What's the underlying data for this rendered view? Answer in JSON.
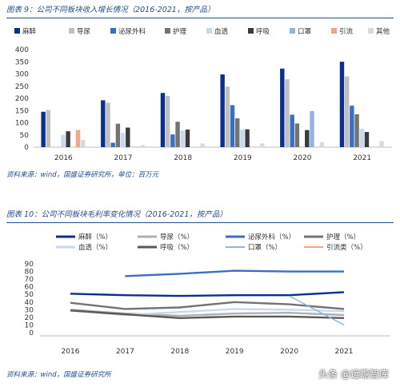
{
  "figure1": {
    "title": "图表 9：公司不同板块收入增长情况（2016-2021，按产品）",
    "source": "资料来源：wind，国盛证券研究所，单位：百万元"
  },
  "figure2": {
    "title": "图表 10：公司不同板块毛利率变化情况（2016-2021，按产品）",
    "source": "资料来源：wind，国盛证券研究所"
  },
  "watermark": "头条 @远瞻智库",
  "chart_data": [
    {
      "type": "bar",
      "categories": [
        "2016",
        "2017",
        "2018",
        "2019",
        "2020",
        "2021"
      ],
      "ylim": [
        0,
        400
      ],
      "yticks": [
        0,
        50,
        100,
        150,
        200,
        250,
        300,
        350,
        400
      ],
      "legend_position": "top",
      "series": [
        {
          "name": "麻醉",
          "color": "#0a2f8c",
          "values": [
            145,
            192,
            222,
            298,
            322,
            350
          ]
        },
        {
          "name": "导尿",
          "color": "#c0c0c0",
          "values": [
            152,
            182,
            210,
            248,
            278,
            290
          ]
        },
        {
          "name": "泌尿外科",
          "color": "#3a6fc4",
          "values": [
            0,
            18,
            52,
            172,
            133,
            170
          ]
        },
        {
          "name": "护理",
          "color": "#737373",
          "values": [
            0,
            96,
            104,
            118,
            97,
            135
          ]
        },
        {
          "name": "血透",
          "color": "#c8d9ee",
          "values": [
            50,
            58,
            68,
            72,
            0,
            75
          ]
        },
        {
          "name": "呼吸",
          "color": "#3b3b3b",
          "values": [
            65,
            80,
            72,
            73,
            70,
            62
          ]
        },
        {
          "name": "口罩",
          "color": "#8fb4df",
          "values": [
            0,
            0,
            0,
            0,
            148,
            0
          ]
        },
        {
          "name": "引流",
          "color": "#f2a48c",
          "values": [
            70,
            0,
            0,
            0,
            0,
            0
          ]
        },
        {
          "name": "其他",
          "color": "#d9d9d9",
          "values": [
            30,
            8,
            15,
            15,
            20,
            25
          ]
        }
      ]
    },
    {
      "type": "line",
      "categories": [
        "2016",
        "2017",
        "2018",
        "2019",
        "2020",
        "2021"
      ],
      "ylim": [
        0,
        90
      ],
      "yticks": [
        0,
        10,
        20,
        30,
        40,
        50,
        60,
        70,
        80,
        90
      ],
      "legend_position": "top",
      "series": [
        {
          "name": "麻醉（%）",
          "color": "#0a2f8c",
          "width": 2.4,
          "values": [
            51,
            49,
            48,
            49,
            49,
            53
          ]
        },
        {
          "name": "导尿（%）",
          "color": "#b0b0b0",
          "width": 2.4,
          "values": [
            30,
            25,
            22,
            25,
            26,
            23
          ]
        },
        {
          "name": "泌尿外科（%）",
          "color": "#3a6fc4",
          "width": 2.4,
          "values": [
            null,
            74,
            77,
            81,
            80,
            80
          ]
        },
        {
          "name": "护理（%）",
          "color": "#737373",
          "width": 2.4,
          "values": [
            39,
            31,
            33,
            40,
            37,
            31
          ]
        },
        {
          "name": "血透（%）",
          "color": "#c8d9ee",
          "width": 2.4,
          "values": [
            29,
            23,
            27,
            31,
            30,
            28
          ]
        },
        {
          "name": "呼吸（%）",
          "color": "#595959",
          "width": 2.4,
          "values": [
            29,
            24,
            19,
            21,
            21,
            19
          ]
        },
        {
          "name": "口罩（%）",
          "color": "#8fb4df",
          "width": 1.4,
          "values": [
            null,
            null,
            null,
            null,
            48,
            10
          ]
        },
        {
          "name": "引流类（%）",
          "color": "#f2a48c",
          "width": 1.4,
          "values": [
            null,
            null,
            null,
            null,
            null,
            null
          ]
        }
      ]
    }
  ]
}
